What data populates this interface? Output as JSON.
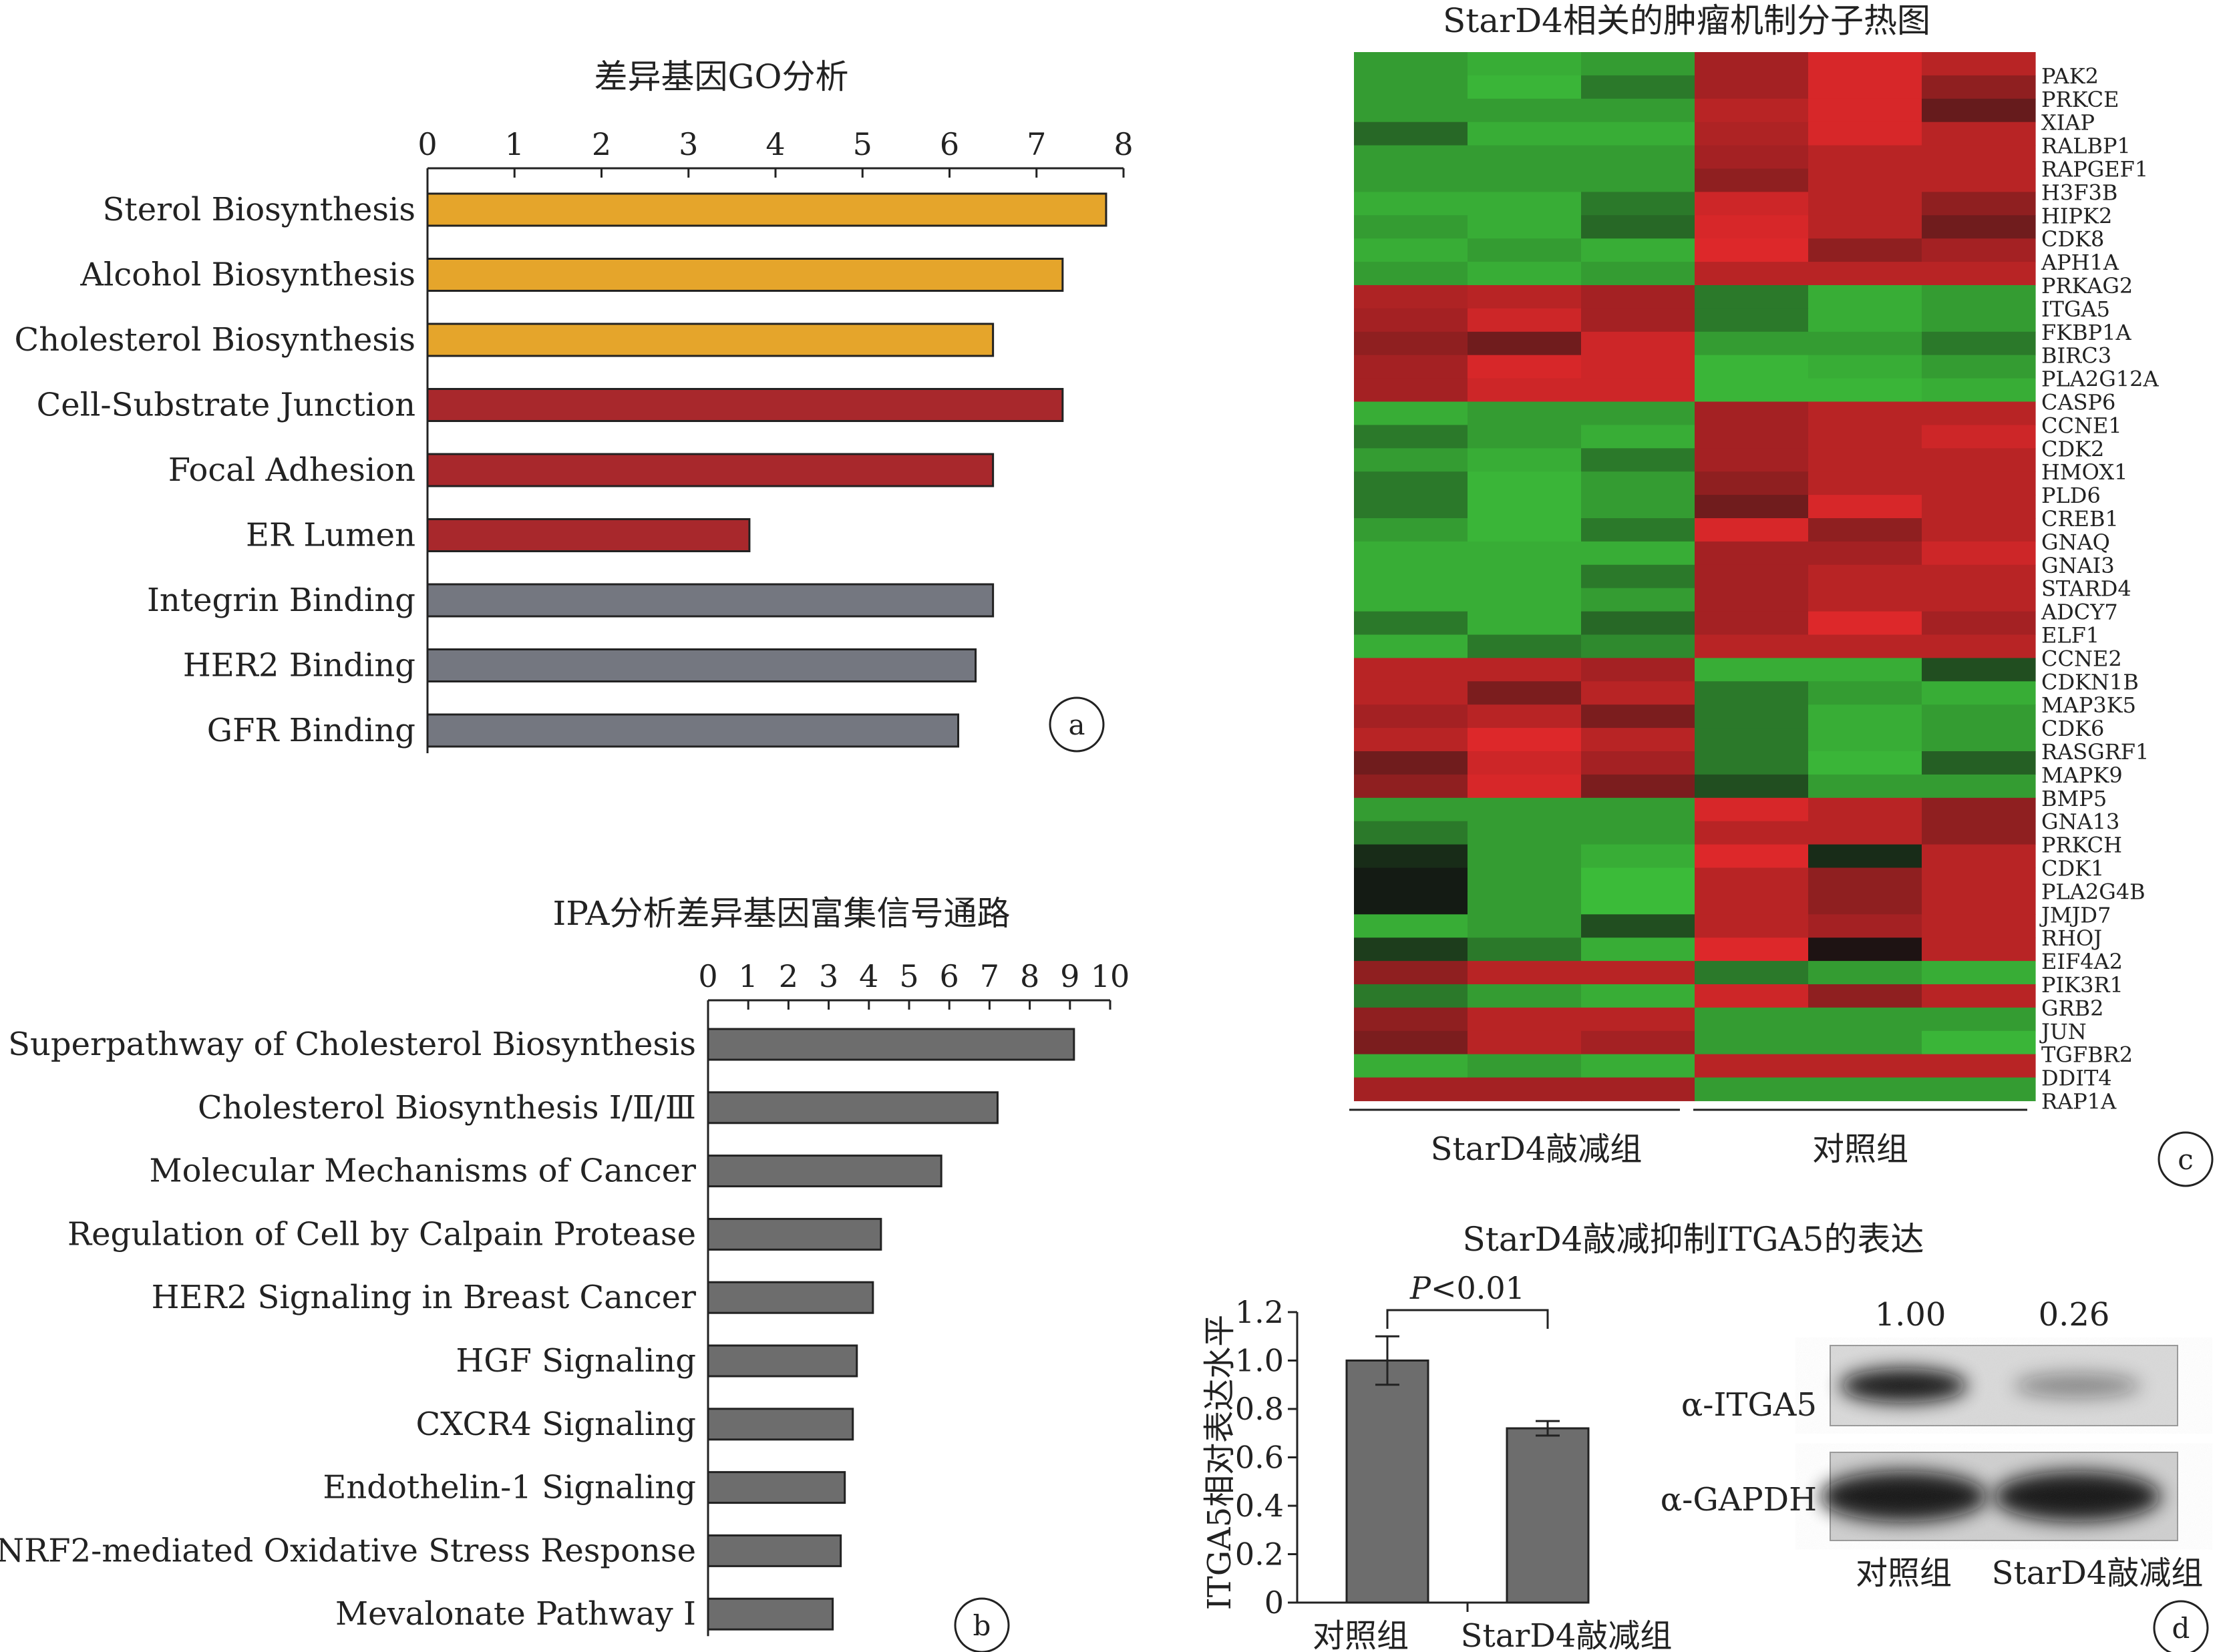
{
  "chart_data": [
    {
      "panel": "a",
      "type": "bar",
      "orientation": "horizontal",
      "title": "差异基因GO分析",
      "xlim": [
        0,
        8
      ],
      "ticks": [
        0,
        1,
        2,
        3,
        4,
        5,
        6,
        7,
        8
      ],
      "categories": [
        "Sterol Biosynthesis",
        "Alcohol Biosynthesis",
        "Cholesterol Biosynthesis",
        "Cell-Substrate Junction",
        "Focal Adhesion",
        "ER Lumen",
        "Integrin Binding",
        "HER2 Binding",
        "GFR Binding"
      ],
      "values": [
        7.8,
        7.3,
        6.5,
        7.3,
        6.5,
        3.7,
        6.5,
        6.3,
        6.1
      ],
      "colors": [
        "#e5a52b",
        "#e5a52b",
        "#e5a52b",
        "#a8282c",
        "#a8282c",
        "#a8282c",
        "#747780",
        "#747780",
        "#747780"
      ],
      "label": "a"
    },
    {
      "panel": "b",
      "type": "bar",
      "orientation": "horizontal",
      "title": "IPA分析差异基因富集信号通路",
      "xlim": [
        0,
        10
      ],
      "ticks": [
        0,
        1,
        2,
        3,
        4,
        5,
        6,
        7,
        8,
        9,
        10
      ],
      "categories": [
        "Superpathway of Cholesterol Biosynthesis",
        "Cholesterol Biosynthesis Ⅰ/Ⅱ/Ⅲ",
        "Molecular Mechanisms of Cancer",
        "Regulation of Cell by Calpain Protease",
        "HER2 Signaling in Breast Cancer",
        "HGF Signaling",
        "CXCR4 Signaling",
        "Endothelin-1 Signaling",
        "NRF2-mediated Oxidative Stress Response",
        "Mevalonate Pathway Ⅰ"
      ],
      "values": [
        9.1,
        7.2,
        5.8,
        4.3,
        4.1,
        3.7,
        3.6,
        3.4,
        3.3,
        3.1
      ],
      "colors": [
        "#6d6d6d"
      ],
      "label": "b"
    },
    {
      "panel": "c",
      "type": "heatmap",
      "title": "StarD4相关的肿瘤机制分子热图",
      "genes": [
        "PAK2",
        "PRKCE",
        "XIAP",
        "RALBP1",
        "RAPGEF1",
        "H3F3B",
        "HIPK2",
        "CDK8",
        "APH1A",
        "PRKAG2",
        "ITGA5",
        "FKBP1A",
        "BIRC3",
        "PLA2G12A",
        "CASP6",
        "CCNE1",
        "CDK2",
        "HMOX1",
        "PLD6",
        "CREB1",
        "GNAQ",
        "GNAI3",
        "STARD4",
        "ADCY7",
        "ELF1",
        "CCNE2",
        "CDKN1B",
        "MAP3K5",
        "CDK6",
        "RASGRF1",
        "MAPK9",
        "BMP5",
        "GNA13",
        "PRKCH",
        "CDK1",
        "PLA2G4B",
        "JMJD7",
        "RHOJ",
        "EIF4A2",
        "PIK3R1",
        "GRB2",
        "JUN",
        "TGFBR2",
        "DDIT4",
        "RAP1A"
      ],
      "groups": [
        "StarD4敲减组",
        "对照组"
      ],
      "values": [
        [
          -0.8,
          -0.9,
          -0.8,
          0.7,
          0.95,
          0.8
        ],
        [
          -0.8,
          -0.95,
          -0.6,
          0.7,
          0.95,
          0.6
        ],
        [
          -0.8,
          -0.8,
          -0.8,
          0.8,
          0.95,
          0.4
        ],
        [
          -0.5,
          -0.9,
          -0.9,
          0.75,
          0.95,
          0.8
        ],
        [
          -0.8,
          -0.8,
          -0.8,
          0.7,
          0.8,
          0.8
        ],
        [
          -0.8,
          -0.8,
          -0.8,
          0.6,
          0.8,
          0.8
        ],
        [
          -0.9,
          -0.9,
          -0.6,
          0.9,
          0.8,
          0.6
        ],
        [
          -0.8,
          -0.9,
          -0.5,
          0.95,
          0.8,
          0.45
        ],
        [
          -0.9,
          -0.8,
          -0.9,
          0.98,
          0.6,
          0.7
        ],
        [
          -0.8,
          -0.9,
          -0.8,
          0.8,
          0.8,
          0.8
        ],
        [
          0.75,
          0.8,
          0.7,
          -0.6,
          -0.9,
          -0.8
        ],
        [
          0.7,
          0.9,
          0.7,
          -0.6,
          -0.9,
          -0.8
        ],
        [
          0.6,
          0.45,
          0.9,
          -0.8,
          -0.8,
          -0.6
        ],
        [
          0.7,
          0.95,
          0.9,
          -0.95,
          -0.9,
          -0.8
        ],
        [
          0.7,
          0.9,
          0.9,
          -0.95,
          -0.95,
          -0.9
        ],
        [
          -0.9,
          -0.8,
          -0.8,
          0.7,
          0.8,
          0.8
        ],
        [
          -0.6,
          -0.8,
          -0.9,
          0.7,
          0.8,
          0.9
        ],
        [
          -0.8,
          -0.9,
          -0.6,
          0.7,
          0.8,
          0.8
        ],
        [
          -0.6,
          -0.95,
          -0.8,
          0.6,
          0.8,
          0.8
        ],
        [
          -0.6,
          -0.95,
          -0.8,
          0.45,
          0.95,
          0.8
        ],
        [
          -0.8,
          -0.95,
          -0.6,
          0.95,
          0.6,
          0.8
        ],
        [
          -0.9,
          -0.9,
          -0.9,
          0.7,
          0.7,
          0.9
        ],
        [
          -0.9,
          -0.9,
          -0.6,
          0.7,
          0.8,
          0.8
        ],
        [
          -0.9,
          -0.9,
          -0.8,
          0.7,
          0.8,
          0.8
        ],
        [
          -0.6,
          -0.9,
          -0.5,
          0.7,
          0.98,
          0.7
        ],
        [
          -0.9,
          -0.6,
          -0.7,
          0.8,
          0.8,
          0.8
        ],
        [
          0.8,
          0.8,
          0.7,
          -0.9,
          -0.9,
          -0.35
        ],
        [
          0.8,
          0.5,
          0.8,
          -0.6,
          -0.8,
          -0.9
        ],
        [
          0.7,
          0.8,
          0.5,
          -0.6,
          -0.9,
          -0.8
        ],
        [
          0.8,
          0.98,
          0.8,
          -0.6,
          -0.9,
          -0.8
        ],
        [
          0.45,
          0.9,
          0.7,
          -0.6,
          -0.95,
          -0.45
        ],
        [
          0.6,
          0.95,
          0.5,
          -0.35,
          -0.8,
          -0.8
        ],
        [
          -0.8,
          -0.8,
          -0.8,
          0.95,
          0.8,
          0.6
        ],
        [
          -0.6,
          -0.8,
          -0.8,
          0.8,
          0.8,
          0.6
        ],
        [
          -0.15,
          -0.8,
          -0.9,
          0.98,
          -0.15,
          0.8
        ],
        [
          -0.05,
          -0.8,
          -0.98,
          0.8,
          0.6,
          0.8
        ],
        [
          -0.05,
          -0.8,
          -0.98,
          0.8,
          0.6,
          0.8
        ],
        [
          -0.9,
          -0.8,
          -0.35,
          0.8,
          0.7,
          0.8
        ],
        [
          -0.25,
          -0.6,
          -0.9,
          0.98,
          0.05,
          0.8
        ],
        [
          0.6,
          0.8,
          0.8,
          -0.6,
          -0.8,
          -0.9
        ],
        [
          -0.6,
          -0.8,
          -0.9,
          0.9,
          0.6,
          0.8
        ],
        [
          0.6,
          0.8,
          0.8,
          -0.8,
          -0.8,
          -0.8
        ],
        [
          0.5,
          0.8,
          0.7,
          -0.8,
          -0.8,
          -0.95
        ],
        [
          -0.9,
          -0.8,
          -0.9,
          0.8,
          0.8,
          0.8
        ],
        [
          0.7,
          0.7,
          0.7,
          -0.8,
          -0.8,
          -0.8
        ]
      ],
      "label": "c"
    },
    {
      "panel": "d",
      "type": "bar",
      "title": "StarD4敲减抑制ITGA5的表达",
      "ylabel": "ITGA5相对表达水平",
      "ylim": [
        0,
        1.2
      ],
      "ticks": [
        "0",
        "0.2",
        "0.4",
        "0.6",
        "0.8",
        "1.0",
        "1.2"
      ],
      "categories": [
        "对照组",
        "StarD4敲减组"
      ],
      "values": [
        1.0,
        0.72
      ],
      "errors": [
        0.1,
        0.03
      ],
      "pvalue_p": "P",
      "pvalue_rest": "<0.01",
      "blot": {
        "lanes": [
          "对照组",
          "StarD4敲减组"
        ],
        "ratios": [
          "1.00",
          "0.26"
        ],
        "rows": [
          "α-ITGA5",
          "α-GAPDH"
        ],
        "band_intensity": {
          "ITGA5": [
            1.0,
            0.26
          ],
          "GAPDH": [
            1.0,
            1.0
          ]
        }
      },
      "label": "d"
    }
  ]
}
